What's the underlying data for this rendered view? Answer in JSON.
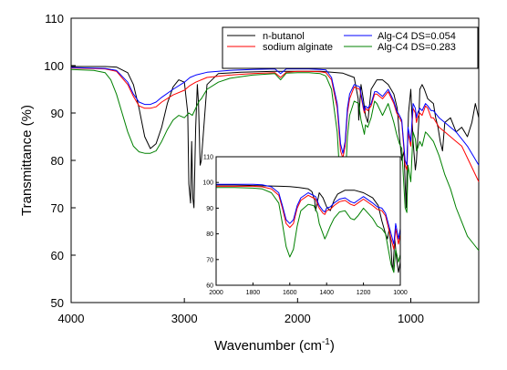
{
  "chart_data": [
    {
      "type": "line",
      "xlabel": "Wavenumber (cm",
      "xlabel_sup": "-1",
      "xlabel_close": ")",
      "ylabel": "Transmittance (%)",
      "xlim": [
        4000,
        400
      ],
      "ylim": [
        50,
        110
      ],
      "x_reversed": true,
      "x_ticks": [
        4000,
        3000,
        2000,
        1000
      ],
      "x_tick_labels": [
        "4000",
        "3000",
        "2000",
        "1000"
      ],
      "y_ticks": [
        50,
        60,
        70,
        80,
        90,
        100,
        110
      ],
      "y_tick_labels": [
        "50",
        "60",
        "70",
        "80",
        "90",
        "100",
        "110"
      ],
      "legend_position": "top-right",
      "legend_columns": 2,
      "series": [
        {
          "name": "n-butanol",
          "color": "#000000",
          "x": [
            4000,
            3700,
            3600,
            3500,
            3450,
            3400,
            3350,
            3300,
            3250,
            3200,
            3150,
            3100,
            3050,
            3000,
            2970,
            2960,
            2945,
            2935,
            2925,
            2915,
            2900,
            2885,
            2875,
            2860,
            2850,
            2800,
            2700,
            2500,
            2200,
            2000,
            1800,
            1700,
            1600,
            1500,
            1465,
            1460,
            1440,
            1420,
            1400,
            1380,
            1350,
            1300,
            1250,
            1200,
            1150,
            1120,
            1100,
            1080,
            1060,
            1050,
            1040,
            1030,
            1020,
            1000,
            980,
            960,
            950,
            930,
            920,
            900,
            880,
            850,
            800,
            780,
            760,
            740,
            720,
            700,
            650,
            600,
            550,
            500,
            460,
            430,
            400
          ],
          "y": [
            99.8,
            99.8,
            99.7,
            98.5,
            96,
            91,
            85,
            82.5,
            83.5,
            87,
            92,
            95.5,
            97,
            96.5,
            90,
            75,
            71,
            84,
            72,
            70,
            87,
            96,
            92,
            79,
            80,
            96,
            98.3,
            98.6,
            98.8,
            98.8,
            98.8,
            98.6,
            98.4,
            97.5,
            93,
            88.5,
            96,
            93,
            89.5,
            88,
            95,
            97,
            97,
            96,
            94,
            91,
            85,
            80,
            82,
            75,
            70,
            82,
            90,
            95,
            84,
            78,
            80,
            88,
            95,
            96,
            95,
            93,
            92,
            89,
            87,
            84,
            82,
            88,
            89,
            86,
            87,
            85,
            88,
            92,
            89
          ]
        },
        {
          "name": "sodium alginate",
          "color": "#ff0000",
          "x": [
            4000,
            3700,
            3600,
            3500,
            3450,
            3400,
            3350,
            3300,
            3250,
            3200,
            3100,
            3000,
            2950,
            2900,
            2800,
            2600,
            2400,
            2200,
            2150,
            2100,
            2000,
            1900,
            1800,
            1750,
            1700,
            1650,
            1620,
            1600,
            1580,
            1560,
            1540,
            1500,
            1450,
            1420,
            1410,
            1400,
            1380,
            1350,
            1320,
            1300,
            1250,
            1200,
            1150,
            1125,
            1100,
            1080,
            1050,
            1035,
            1025,
            1000,
            980,
            960,
            950,
            940,
            920,
            900,
            870,
            850,
            820,
            800,
            750,
            700,
            650,
            600,
            550,
            500,
            450,
            400
          ],
          "y": [
            99.5,
            99.3,
            98.8,
            96,
            93.5,
            91.5,
            91,
            91,
            91.3,
            92.3,
            93.8,
            94.8,
            95.8,
            96.5,
            97.5,
            98,
            98.3,
            98.5,
            97.5,
            98.6,
            98.8,
            98.8,
            98.7,
            98.5,
            97,
            91,
            82,
            80.5,
            83,
            90,
            93,
            95.5,
            95,
            91,
            90,
            91,
            90.5,
            91.5,
            94,
            94,
            93,
            94.5,
            92,
            90,
            89,
            88,
            79,
            78,
            86,
            83,
            91,
            90,
            88,
            89,
            90,
            89.5,
            91.5,
            91,
            89,
            89,
            87,
            86,
            85,
            84,
            83,
            80.5,
            78,
            75.5
          ]
        },
        {
          "name": "Alg-C4 DS=0.054",
          "color": "#0000ff",
          "x": [
            4000,
            3700,
            3600,
            3500,
            3450,
            3400,
            3350,
            3300,
            3250,
            3200,
            3100,
            3000,
            2950,
            2900,
            2800,
            2600,
            2400,
            2200,
            2150,
            2100,
            2000,
            1900,
            1800,
            1750,
            1700,
            1650,
            1620,
            1600,
            1580,
            1560,
            1540,
            1500,
            1450,
            1420,
            1410,
            1400,
            1380,
            1350,
            1320,
            1300,
            1250,
            1200,
            1150,
            1125,
            1100,
            1080,
            1050,
            1035,
            1025,
            1000,
            980,
            960,
            950,
            940,
            920,
            900,
            870,
            850,
            820,
            800,
            750,
            700,
            650,
            600,
            550,
            500,
            450,
            400
          ],
          "y": [
            99.6,
            99.4,
            99,
            96.5,
            94,
            92.3,
            91.8,
            91.8,
            92.3,
            93.3,
            95,
            96.5,
            97.5,
            98,
            98.6,
            99,
            99.2,
            99.3,
            98.3,
            99.3,
            99.3,
            99.3,
            99.2,
            99.1,
            97.5,
            92,
            83.5,
            81.5,
            84,
            91,
            94,
            96,
            95.5,
            91.5,
            90.5,
            91.5,
            91,
            92,
            94.5,
            94.5,
            93.5,
            95,
            92.5,
            90.5,
            89.5,
            88.5,
            80,
            79,
            87,
            84,
            92,
            91,
            89,
            90,
            91,
            90.5,
            92,
            91.5,
            90.5,
            90.5,
            89,
            88,
            87,
            86,
            84.5,
            83,
            81,
            79
          ]
        },
        {
          "name": "Alg-C4 DS=0.283",
          "color": "#008000",
          "x": [
            4000,
            3800,
            3700,
            3650,
            3600,
            3550,
            3500,
            3450,
            3400,
            3350,
            3300,
            3250,
            3200,
            3150,
            3100,
            3050,
            3000,
            2960,
            2930,
            2900,
            2870,
            2850,
            2800,
            2700,
            2600,
            2400,
            2200,
            2150,
            2100,
            2000,
            1900,
            1800,
            1750,
            1700,
            1650,
            1620,
            1600,
            1580,
            1560,
            1540,
            1500,
            1460,
            1440,
            1420,
            1410,
            1400,
            1380,
            1350,
            1320,
            1300,
            1250,
            1200,
            1150,
            1125,
            1100,
            1080,
            1050,
            1035,
            1025,
            1000,
            980,
            960,
            950,
            940,
            920,
            900,
            870,
            850,
            800,
            750,
            700,
            650,
            600,
            550,
            500,
            450,
            400
          ],
          "y": [
            99.2,
            99,
            98.5,
            97,
            94,
            90,
            86,
            83,
            81.8,
            81.5,
            81.5,
            82,
            84,
            86.5,
            88.5,
            89.5,
            89,
            90,
            89.5,
            91,
            92.5,
            93,
            95,
            96.5,
            97.3,
            98,
            98.3,
            97,
            98.4,
            98.5,
            98.5,
            98.3,
            97.8,
            95,
            86,
            74,
            71,
            75,
            85,
            89.5,
            92.5,
            92,
            88.5,
            86.5,
            85.5,
            87.5,
            87,
            89,
            92.5,
            92,
            89.5,
            92,
            88,
            85.5,
            83.5,
            82.5,
            70,
            69,
            79,
            75.5,
            86,
            84.5,
            82,
            82.5,
            84,
            83,
            86,
            85.5,
            84,
            81,
            77,
            74,
            70,
            67,
            64,
            62.5,
            61
          ]
        }
      ]
    },
    {
      "type": "line",
      "role": "inset",
      "xlim": [
        2000,
        1000
      ],
      "ylim": [
        60,
        110
      ],
      "x_reversed": true,
      "x_ticks": [
        2000,
        1800,
        1600,
        1400,
        1200,
        1000
      ],
      "x_tick_labels": [
        "2000",
        "1800",
        "1600",
        "1400",
        "1200",
        "1000"
      ],
      "y_ticks": [
        60,
        70,
        80,
        90,
        100,
        110
      ],
      "y_tick_labels": [
        "60",
        "70",
        "80",
        "90",
        "100",
        "110"
      ],
      "series": [
        {
          "name": "n-butanol",
          "color": "#000000",
          "x": [
            2000,
            1900,
            1800,
            1700,
            1650,
            1600,
            1550,
            1500,
            1480,
            1465,
            1460,
            1440,
            1420,
            1400,
            1380,
            1360,
            1340,
            1300,
            1250,
            1200,
            1150,
            1120,
            1100,
            1080,
            1070,
            1060,
            1050,
            1045,
            1040,
            1030,
            1020,
            1010,
            1000
          ],
          "y": [
            99,
            99,
            98.8,
            98.6,
            98.5,
            98.4,
            98,
            97.5,
            96.5,
            93,
            89,
            96,
            94,
            90.5,
            89,
            93,
            95.5,
            97,
            97,
            96,
            94,
            91,
            85,
            80,
            78,
            82,
            74,
            68,
            66,
            78,
            70,
            65,
            69
          ]
        },
        {
          "name": "sodium alginate",
          "color": "#ff0000",
          "x": [
            2000,
            1900,
            1800,
            1750,
            1700,
            1660,
            1640,
            1620,
            1600,
            1580,
            1560,
            1540,
            1500,
            1460,
            1440,
            1420,
            1410,
            1400,
            1380,
            1360,
            1330,
            1300,
            1270,
            1250,
            1230,
            1200,
            1150,
            1125,
            1100,
            1080,
            1050,
            1035,
            1025,
            1010,
            1000
          ],
          "y": [
            98.5,
            98.5,
            98.5,
            98.3,
            97.5,
            95,
            90,
            84,
            82.5,
            84,
            90,
            93,
            95,
            93.5,
            90,
            88,
            87.5,
            89,
            89.5,
            91,
            92.5,
            93,
            91.5,
            91,
            92,
            93.5,
            91,
            89.5,
            89,
            87,
            78,
            74,
            82,
            76,
            80
          ]
        },
        {
          "name": "Alg-C4 DS=0.054",
          "color": "#0000ff",
          "x": [
            2000,
            1900,
            1800,
            1750,
            1700,
            1660,
            1640,
            1620,
            1600,
            1580,
            1560,
            1540,
            1500,
            1460,
            1440,
            1420,
            1410,
            1400,
            1380,
            1360,
            1330,
            1300,
            1270,
            1250,
            1230,
            1200,
            1150,
            1125,
            1100,
            1080,
            1050,
            1035,
            1025,
            1010,
            1000
          ],
          "y": [
            99.3,
            99.3,
            99.3,
            99.1,
            98.3,
            96,
            91,
            85.5,
            84,
            85.5,
            91,
            94,
            96,
            94.5,
            91,
            89,
            88.5,
            90,
            90.5,
            92,
            93.5,
            94,
            92.5,
            92,
            93,
            94.5,
            92,
            90.5,
            90,
            88,
            80,
            76,
            84,
            78,
            82
          ]
        },
        {
          "name": "Alg-C4 DS=0.283",
          "color": "#008000",
          "x": [
            2000,
            1900,
            1800,
            1750,
            1700,
            1660,
            1640,
            1620,
            1600,
            1580,
            1560,
            1540,
            1500,
            1470,
            1450,
            1440,
            1420,
            1410,
            1400,
            1380,
            1360,
            1330,
            1300,
            1270,
            1250,
            1230,
            1200,
            1150,
            1125,
            1100,
            1080,
            1050,
            1035,
            1025,
            1010,
            1000
          ],
          "y": [
            98,
            98,
            97.8,
            97.5,
            96,
            92,
            84,
            75,
            71,
            74,
            83,
            89,
            91.5,
            91,
            88,
            84,
            80,
            78,
            79.5,
            83,
            86,
            88.5,
            89,
            86,
            85.5,
            87,
            90,
            86,
            83,
            82,
            80,
            68,
            65,
            74,
            69,
            72
          ]
        }
      ]
    }
  ],
  "colors": {
    "n-butanol": "#000000",
    "sodium alginate": "#ff0000",
    "Alg-C4 DS=0.054": "#0000ff",
    "Alg-C4 DS=0.283": "#008000"
  }
}
